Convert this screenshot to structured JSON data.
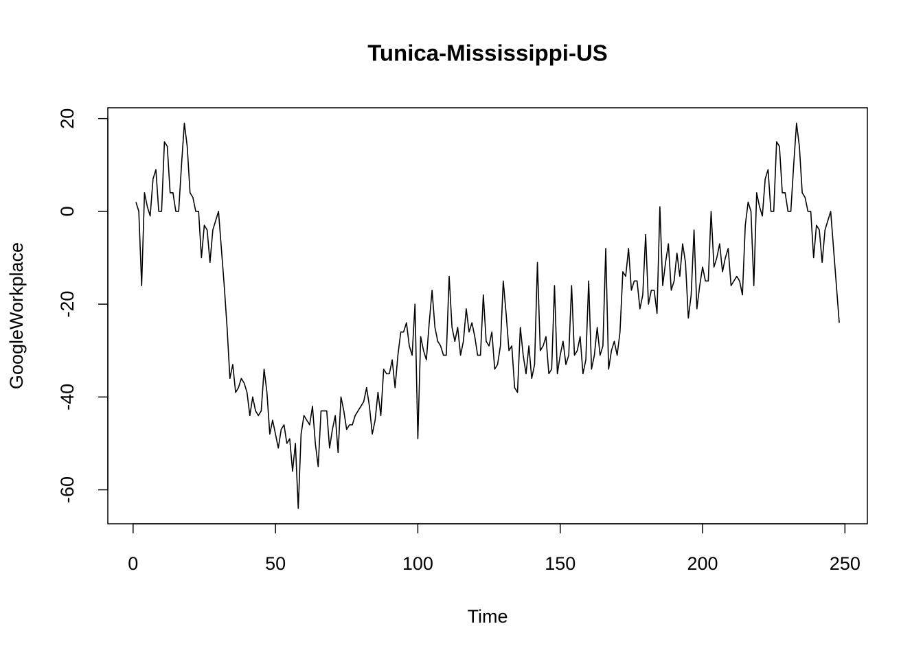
{
  "chart_data": {
    "type": "line",
    "title": "Tunica-Mississippi-US",
    "x_label": "Time",
    "y_label": "GoogleWorkplace",
    "x": [
      1,
      2,
      3,
      4,
      5,
      6,
      7,
      8,
      9,
      10,
      11,
      12,
      13,
      14,
      15,
      16,
      17,
      18,
      19,
      20,
      21,
      22,
      23,
      24,
      25,
      26,
      27,
      28,
      29,
      30,
      31,
      32,
      33,
      34,
      35,
      36,
      37,
      38,
      39,
      40,
      41,
      42,
      43,
      44,
      45,
      46,
      47,
      48,
      49,
      50,
      51,
      52,
      53,
      54,
      55,
      56,
      57,
      58,
      59,
      60,
      61,
      62,
      63,
      64,
      65,
      66,
      67,
      68,
      69,
      70,
      71,
      72,
      73,
      74,
      75,
      76,
      77,
      78,
      79,
      80,
      81,
      82,
      83,
      84,
      85,
      86,
      87,
      88,
      89,
      90,
      91,
      92,
      93,
      94,
      95,
      96,
      97,
      98,
      99,
      100,
      101,
      102,
      103,
      104,
      105,
      106,
      107,
      108,
      109,
      110,
      111,
      112,
      113,
      114,
      115,
      116,
      117,
      118,
      119,
      120,
      121,
      122,
      123,
      124,
      125,
      126,
      127,
      128,
      129,
      130,
      131,
      132,
      133,
      134,
      135,
      136,
      137,
      138,
      139,
      140,
      141,
      142,
      143,
      144,
      145,
      146,
      147,
      148,
      149,
      150,
      151,
      152,
      153,
      154,
      155,
      156,
      157,
      158,
      159,
      160,
      161,
      162,
      163,
      164,
      165,
      166,
      167,
      168,
      169,
      170,
      171,
      172,
      173,
      174,
      175,
      176,
      177,
      178,
      179,
      180,
      181,
      182,
      183,
      184,
      185,
      186,
      187,
      188,
      189,
      190,
      191,
      192,
      193,
      194,
      195,
      196,
      197,
      198,
      199,
      200,
      201,
      202,
      203,
      204,
      205,
      206,
      207,
      208,
      209,
      210,
      211,
      212,
      213,
      214,
      215,
      216,
      217,
      218,
      219,
      220,
      221,
      222,
      223,
      224,
      225,
      226,
      227,
      228,
      229,
      230,
      231,
      232,
      233,
      234,
      235,
      236,
      237,
      238,
      239,
      240,
      241,
      242,
      243,
      244,
      245,
      246,
      247,
      248
    ],
    "series": [
      {
        "name": "GoogleWorkplace",
        "color": "#000000",
        "values": [
          2,
          0,
          -16,
          4,
          1,
          -1,
          7,
          9,
          0,
          0,
          15,
          14,
          4,
          4,
          0,
          0,
          10,
          19,
          14,
          4,
          3,
          0,
          0,
          -10,
          -3,
          -4,
          -11,
          -4,
          -2,
          0,
          -8,
          -16,
          -25,
          -36,
          -33,
          -39,
          -38,
          -36,
          -37,
          -39,
          -44,
          -40,
          -43,
          -44,
          -43,
          -34,
          -39,
          -48,
          -45,
          -48,
          -51,
          -47,
          -46,
          -50,
          -49,
          -56,
          -50,
          -64,
          -48,
          -44,
          -45,
          -46,
          -42,
          -50,
          -55,
          -43,
          -43,
          -43,
          -51,
          -47,
          -44,
          -52,
          -40,
          -43,
          -47,
          -46,
          -46,
          -44,
          -43,
          -42,
          -41,
          -38,
          -42,
          -48,
          -45,
          -39,
          -44,
          -34,
          -35,
          -35,
          -32,
          -38,
          -31,
          -26,
          -26,
          -24,
          -29,
          -31,
          -20,
          -49,
          -27,
          -30,
          -32,
          -24,
          -17,
          -25,
          -28,
          -29,
          -31,
          -31,
          -14,
          -25,
          -28,
          -25,
          -31,
          -28,
          -21,
          -26,
          -24,
          -27,
          -31,
          -31,
          -18,
          -28,
          -29,
          -26,
          -34,
          -33,
          -29,
          -15,
          -22,
          -30,
          -29,
          -38,
          -39,
          -25,
          -31,
          -35,
          -29,
          -36,
          -33,
          -11,
          -30,
          -29,
          -27,
          -35,
          -34,
          -16,
          -35,
          -31,
          -28,
          -33,
          -31,
          -16,
          -31,
          -30,
          -27,
          -35,
          -32,
          -15,
          -34,
          -31,
          -25,
          -31,
          -29,
          -8,
          -34,
          -30,
          -28,
          -31,
          -26,
          -13,
          -14,
          -8,
          -17,
          -15,
          -15,
          -21,
          -18,
          -5,
          -20,
          -17,
          -17,
          -22,
          1,
          -16,
          -11,
          -7,
          -17,
          -15,
          -9,
          -14,
          -7,
          -11,
          -23,
          -18,
          -4,
          -21,
          -16,
          -12,
          -15,
          -15,
          0,
          -12,
          -10,
          -7,
          -13,
          -10,
          -8,
          -16,
          -15,
          -14,
          -15,
          -18,
          -3,
          2,
          0,
          -16,
          4,
          1,
          -1,
          7,
          9,
          0,
          0,
          15,
          14,
          4,
          4,
          0,
          0,
          10,
          19,
          14,
          4,
          3,
          0,
          0,
          -10,
          -3,
          -4,
          -11,
          -4,
          -2,
          0,
          -8,
          -16,
          -24
        ]
      }
    ],
    "xlim": [
      -8.88,
      257.88
    ],
    "xticks": [
      0,
      50,
      100,
      150,
      200,
      250
    ],
    "ylim": [
      -67.32,
      22.32
    ],
    "yticks": [
      -60,
      -40,
      -20,
      0,
      20
    ]
  }
}
